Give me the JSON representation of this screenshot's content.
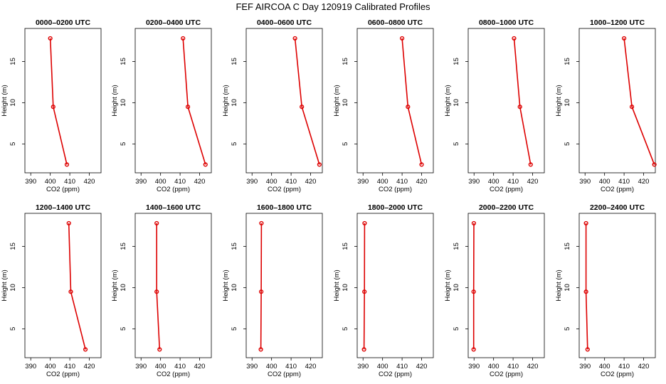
{
  "chart_data": {
    "type": "line",
    "title": "FEF AIRCOA C  Day 120919  Calibrated Profiles",
    "xlabel": "CO2 (ppm)",
    "ylabel": "Height (m)",
    "xlim": [
      387,
      426
    ],
    "ylim": [
      1.5,
      19
    ],
    "xticks": [
      390,
      400,
      410,
      420
    ],
    "yticks": [
      5,
      10,
      15
    ],
    "heights": [
      2.5,
      9.5,
      17.8
    ],
    "panels": [
      {
        "label": "0000–0200 UTC",
        "co2": [
          408.5,
          401.5,
          400.0
        ]
      },
      {
        "label": "0200–0400 UTC",
        "co2": [
          423.0,
          414.0,
          411.5
        ]
      },
      {
        "label": "0400–0600 UTC",
        "co2": [
          424.5,
          415.5,
          412.0
        ]
      },
      {
        "label": "0600–0800 UTC",
        "co2": [
          420.0,
          413.0,
          410.0
        ]
      },
      {
        "label": "0800–1000 UTC",
        "co2": [
          419.0,
          413.5,
          410.5
        ]
      },
      {
        "label": "1000–1200 UTC",
        "co2": [
          425.5,
          414.0,
          410.0
        ]
      },
      {
        "label": "1200–1400 UTC",
        "co2": [
          418.0,
          410.5,
          409.5
        ]
      },
      {
        "label": "1400–1600 UTC",
        "co2": [
          399.5,
          398.0,
          398.0
        ]
      },
      {
        "label": "1600–1800 UTC",
        "co2": [
          394.5,
          394.7,
          394.8
        ]
      },
      {
        "label": "1800–2000 UTC",
        "co2": [
          390.5,
          390.7,
          390.8
        ]
      },
      {
        "label": "2000–2200 UTC",
        "co2": [
          389.8,
          389.8,
          389.9
        ]
      },
      {
        "label": "2200–2400 UTC",
        "co2": [
          391.3,
          390.5,
          390.5
        ]
      }
    ]
  }
}
